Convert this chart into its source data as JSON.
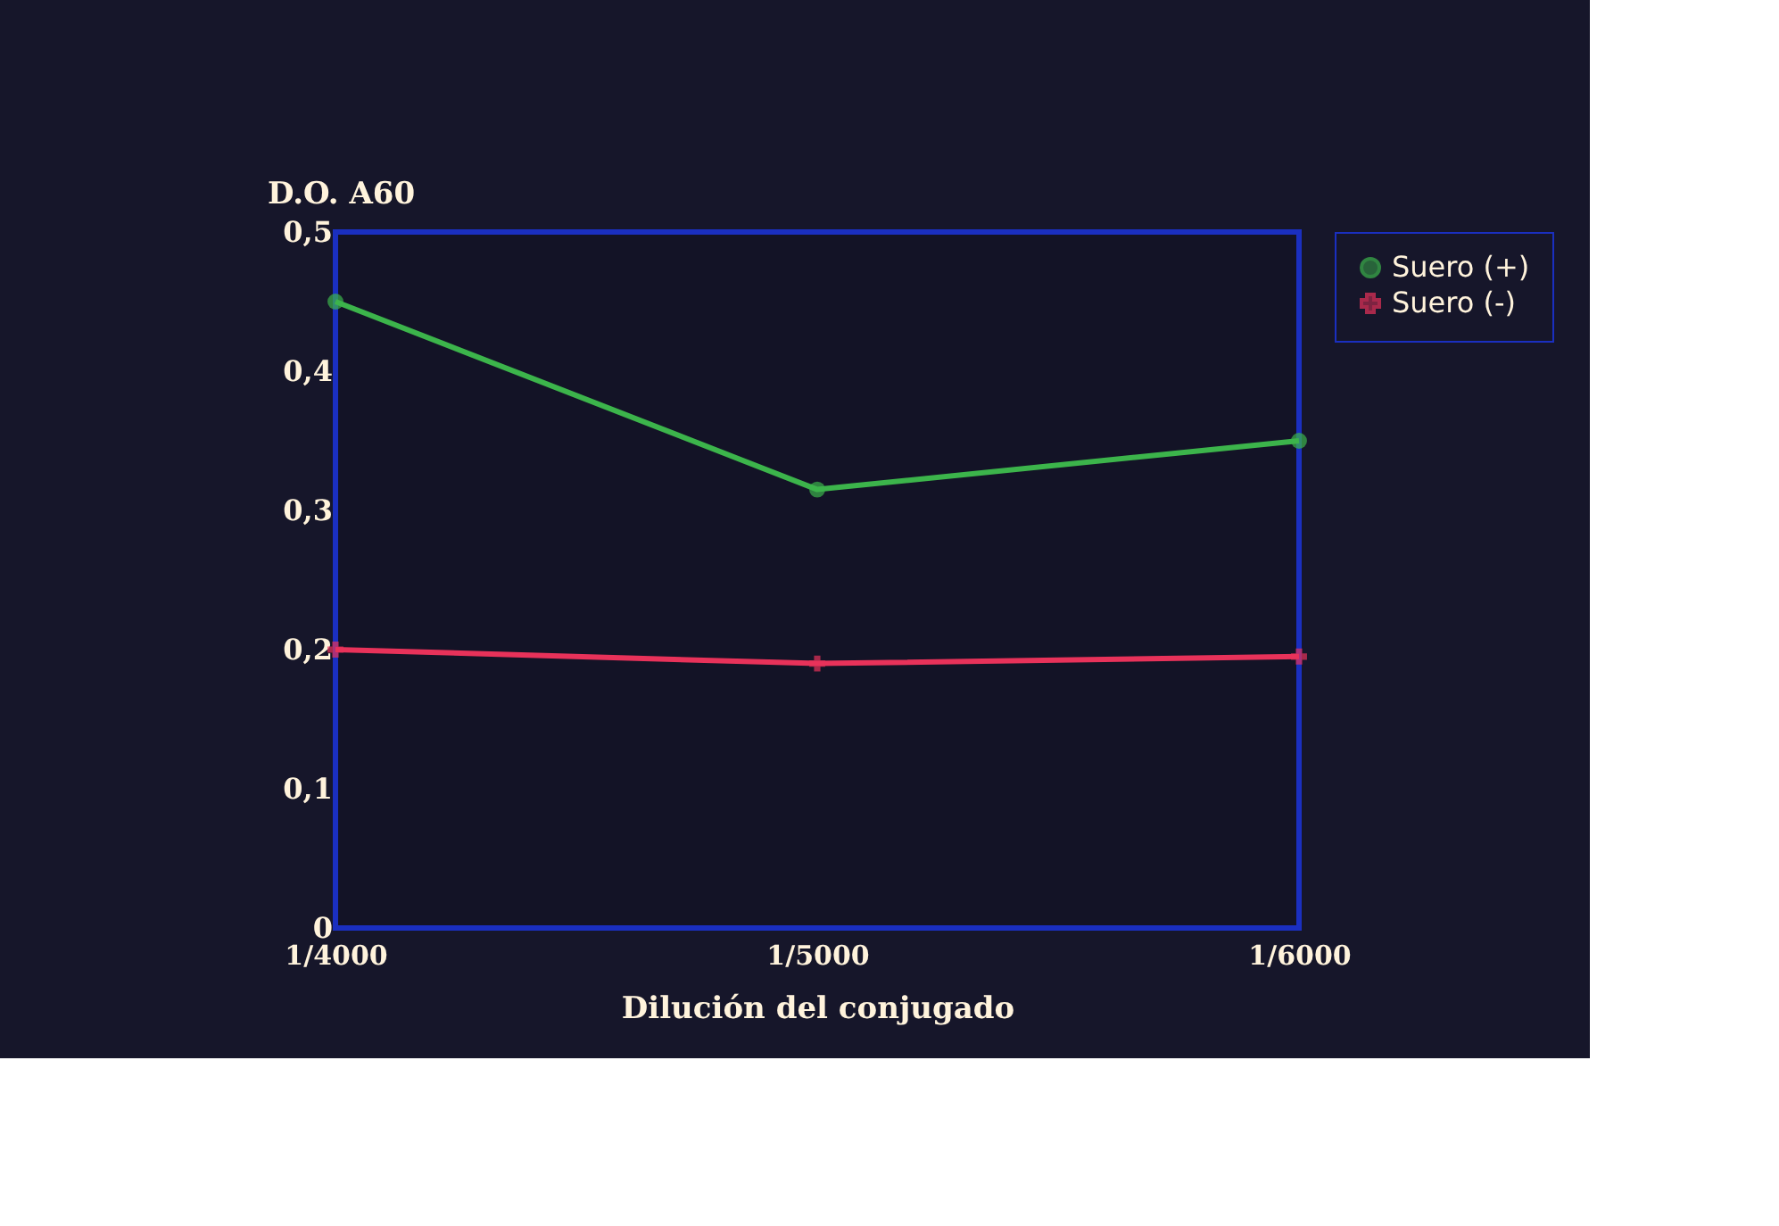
{
  "chart_data": {
    "type": "line",
    "ylabel": "D.O. A60",
    "xlabel": "Dilución del conjugado",
    "categories": [
      "1/4000",
      "1/5000",
      "1/6000"
    ],
    "series": [
      {
        "name": "Suero (+)",
        "color": "#3cb44b",
        "values": [
          0.45,
          0.315,
          0.35
        ],
        "marker": "circle"
      },
      {
        "name": "Suero (-)",
        "color": "#e8325a",
        "values": [
          0.2,
          0.19,
          0.195
        ],
        "marker": "cross"
      }
    ],
    "ylim": [
      0,
      0.5
    ],
    "yticks": [
      {
        "value": 0,
        "label": "0"
      },
      {
        "value": 0.1,
        "label": "0,1"
      },
      {
        "value": 0.2,
        "label": "0,2"
      },
      {
        "value": 0.3,
        "label": "0,3"
      },
      {
        "value": 0.4,
        "label": "0,4"
      },
      {
        "value": 0.5,
        "label": "0,5"
      }
    ],
    "grid": false,
    "legend": "right",
    "line_style": "solid"
  }
}
